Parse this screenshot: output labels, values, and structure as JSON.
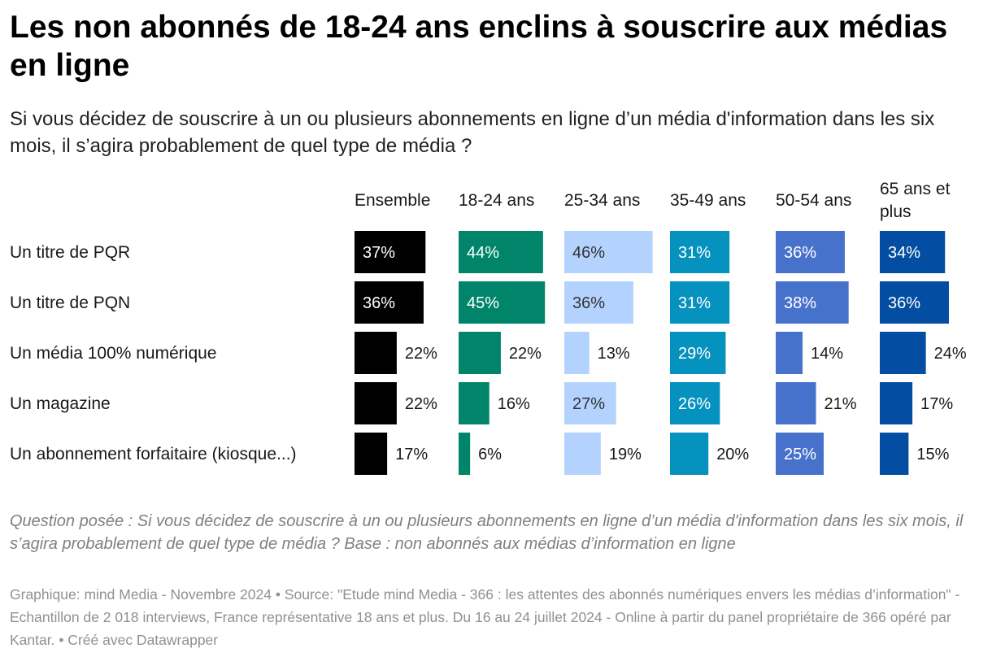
{
  "title": "Les non abonnés de 18-24 ans enclins à souscrire aux médias en ligne",
  "subtitle": "Si vous décidez de souscrire à un ou plusieurs abonnements en ligne d’un média d'information dans les six mois, il s’agira probablement de quel type de média ?",
  "note": "Question posée : Si vous décidez de souscrire à un ou plusieurs abonnements en ligne d’un média d'information dans les six mois, il s’agira probablement de quel type de média ? Base : non abonnés aux médias d’information en ligne",
  "footer": "Graphique: mind Media - Novembre 2024 • Source: \"Etude mind Media - 366 : les attentes des abonnés numériques envers les médias d’information\" - Echantillon de 2 018 interviews, France représentative 18 ans et plus. Du 16 au 24 juillet 2024 - Online à partir du panel propriétaire de 366 opéré par Kantar. • Créé avec Datawrapper",
  "chart_data": {
    "type": "bar",
    "orientation": "horizontal small multiples",
    "unit": "%",
    "categories": [
      "Un titre de PQR",
      "Un titre de PQN",
      "Un média 100% numérique",
      "Un magazine",
      "Un abonnement forfaitaire (kiosque...)"
    ],
    "series": [
      {
        "name": "Ensemble",
        "values": [
          37,
          36,
          22,
          22,
          17
        ],
        "color": "#000000"
      },
      {
        "name": "18-24 ans",
        "values": [
          44,
          45,
          22,
          16,
          6
        ],
        "color": "#00856a"
      },
      {
        "name": "25-34 ans",
        "values": [
          46,
          36,
          13,
          27,
          19
        ],
        "color": "#b4d2fe"
      },
      {
        "name": "35-49 ans",
        "values": [
          31,
          31,
          29,
          26,
          20
        ],
        "color": "#0592bf"
      },
      {
        "name": "50-54 ans",
        "values": [
          36,
          38,
          14,
          21,
          25
        ],
        "color": "#4772cc"
      },
      {
        "name": "65 ans et plus",
        "values": [
          34,
          36,
          24,
          17,
          15
        ],
        "color": "#034ea2"
      }
    ],
    "xlim": [
      0,
      50
    ],
    "labels_inside_text_color": [
      "#ffffff",
      "#ffffff",
      "#333333",
      "#ffffff",
      "#ffffff",
      "#ffffff"
    ]
  }
}
